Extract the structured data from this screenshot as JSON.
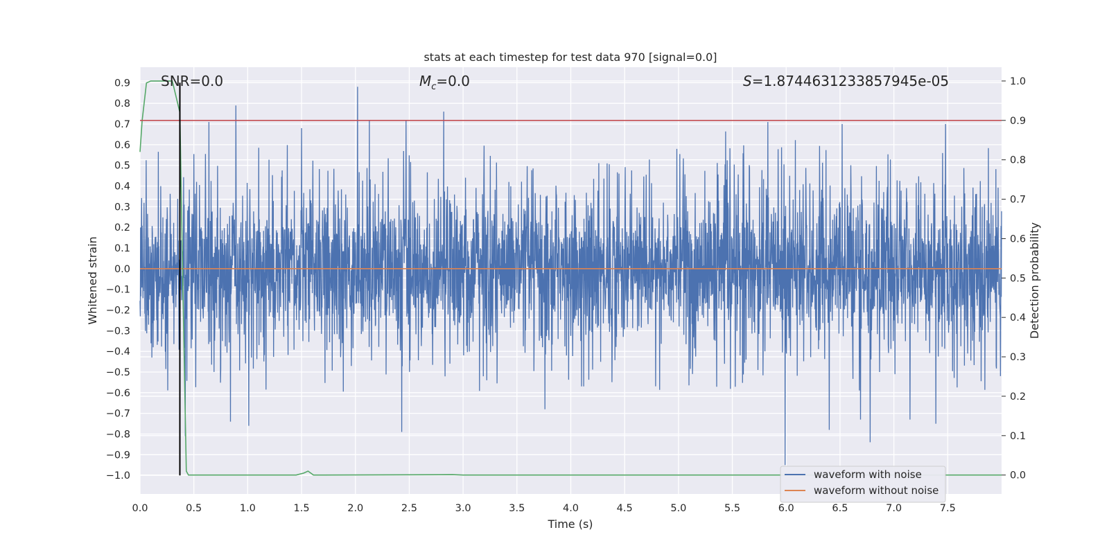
{
  "chart_data": {
    "type": "line",
    "title": "stats at each timestep for test data 970 [signal=0.0]",
    "xlabel": "Time (s)",
    "ylabel_left": "Whitened strain",
    "ylabel_right": "Detection probability",
    "xlim": [
      0.0,
      8.0
    ],
    "ylim_left": [
      -1.09,
      0.975
    ],
    "ylim_right": [
      -0.048,
      1.035
    ],
    "x_ticks": [
      0.0,
      0.5,
      1.0,
      1.5,
      2.0,
      2.5,
      3.0,
      3.5,
      4.0,
      4.5,
      5.0,
      5.5,
      6.0,
      6.5,
      7.0,
      7.5
    ],
    "x_tick_labels": [
      "0.0",
      "0.5",
      "1.0",
      "1.5",
      "2.0",
      "2.5",
      "3.0",
      "3.5",
      "4.0",
      "4.5",
      "5.0",
      "5.5",
      "6.0",
      "6.5",
      "7.0",
      "7.5"
    ],
    "y_left_ticks": [
      0.9,
      0.8,
      0.7,
      0.6,
      0.5,
      0.4,
      0.3,
      0.2,
      0.1,
      0.0,
      -0.1,
      -0.2,
      -0.3,
      -0.4,
      -0.5,
      -0.6,
      -0.7,
      -0.8,
      -0.9,
      -1.0
    ],
    "y_left_tick_labels": [
      "0.9",
      "0.8",
      "0.7",
      "0.6",
      "0.5",
      "0.4",
      "0.3",
      "0.2",
      "0.1",
      "0.0",
      "−0.1",
      "−0.2",
      "−0.3",
      "−0.4",
      "−0.5",
      "−0.6",
      "−0.7",
      "−0.8",
      "−0.9",
      "−1.0"
    ],
    "y_right_ticks": [
      1.0,
      0.9,
      0.8,
      0.7,
      0.6,
      0.5,
      0.4,
      0.3,
      0.2,
      0.1,
      0.0
    ],
    "y_right_tick_labels": [
      "1.0",
      "0.9",
      "0.8",
      "0.7",
      "0.6",
      "0.5",
      "0.4",
      "0.3",
      "0.2",
      "0.1",
      "0.0"
    ],
    "annotations": {
      "snr": "SNR=0.0",
      "mc_symbol": "M",
      "mc_subscript": "c",
      "mc_value": "=0.0",
      "s_symbol": "S",
      "s_value": "=1.8744631233857945e-05"
    },
    "series": [
      {
        "name": "waveform with noise",
        "axis": "left",
        "color": "#4c72b0",
        "description": "dense noise trace, roughly bounded by ±0.5 with spikes",
        "noise_amplitude": 0.28,
        "spikes": [
          {
            "x": 0.89,
            "y": 0.79
          },
          {
            "x": 2.02,
            "y": 0.88
          },
          {
            "x": 2.82,
            "y": 0.76
          },
          {
            "x": 0.64,
            "y": 0.71
          },
          {
            "x": 1.5,
            "y": 0.68
          },
          {
            "x": 2.13,
            "y": 0.72
          },
          {
            "x": 2.47,
            "y": 0.72
          },
          {
            "x": 5.83,
            "y": 0.71
          },
          {
            "x": 6.52,
            "y": 0.7
          },
          {
            "x": 7.48,
            "y": 0.7
          },
          {
            "x": 5.99,
            "y": -0.95
          },
          {
            "x": 6.78,
            "y": -0.84
          },
          {
            "x": 2.43,
            "y": -0.79
          },
          {
            "x": 0.84,
            "y": -0.74
          },
          {
            "x": 1.01,
            "y": -0.76
          },
          {
            "x": 6.4,
            "y": -0.78
          },
          {
            "x": 7.39,
            "y": -0.75
          },
          {
            "x": 3.76,
            "y": -0.68
          },
          {
            "x": 6.69,
            "y": -0.73
          },
          {
            "x": 7.15,
            "y": -0.73
          },
          {
            "x": 0.42,
            "y": -0.81
          }
        ]
      },
      {
        "name": "waveform without noise",
        "axis": "left",
        "color": "#dd8452",
        "x": [
          0.0,
          8.0
        ],
        "y": [
          0.0,
          0.0
        ]
      },
      {
        "name": "detection probability",
        "axis": "right",
        "color": "#55a868",
        "x": [
          0.0,
          0.02,
          0.06,
          0.1,
          0.2,
          0.3,
          0.37,
          0.4,
          0.43,
          0.45,
          1.45,
          1.52,
          1.56,
          1.61,
          1.7,
          2.9,
          3.0,
          8.0
        ],
        "y": [
          0.82,
          0.9,
          0.995,
          1.0,
          1.0,
          1.0,
          0.92,
          0.45,
          0.01,
          0.0,
          0.0,
          0.005,
          0.01,
          0.0,
          0.0,
          0.001,
          0.0,
          0.0
        ]
      },
      {
        "name": "threshold",
        "axis": "right",
        "color": "#c44e52",
        "x": [
          0.0,
          8.0
        ],
        "y": [
          0.9,
          0.9
        ]
      },
      {
        "name": "detection time marker",
        "axis": "left",
        "color": "#000000",
        "x": [
          0.37,
          0.37
        ],
        "y": [
          -1.0,
          0.9
        ]
      }
    ],
    "legend": {
      "placement": "lower-right",
      "entries": [
        {
          "label": "waveform with noise",
          "color": "#4c72b0"
        },
        {
          "label": "waveform without noise",
          "color": "#dd8452"
        }
      ]
    },
    "grid": true,
    "background": "#eaeaf2"
  }
}
